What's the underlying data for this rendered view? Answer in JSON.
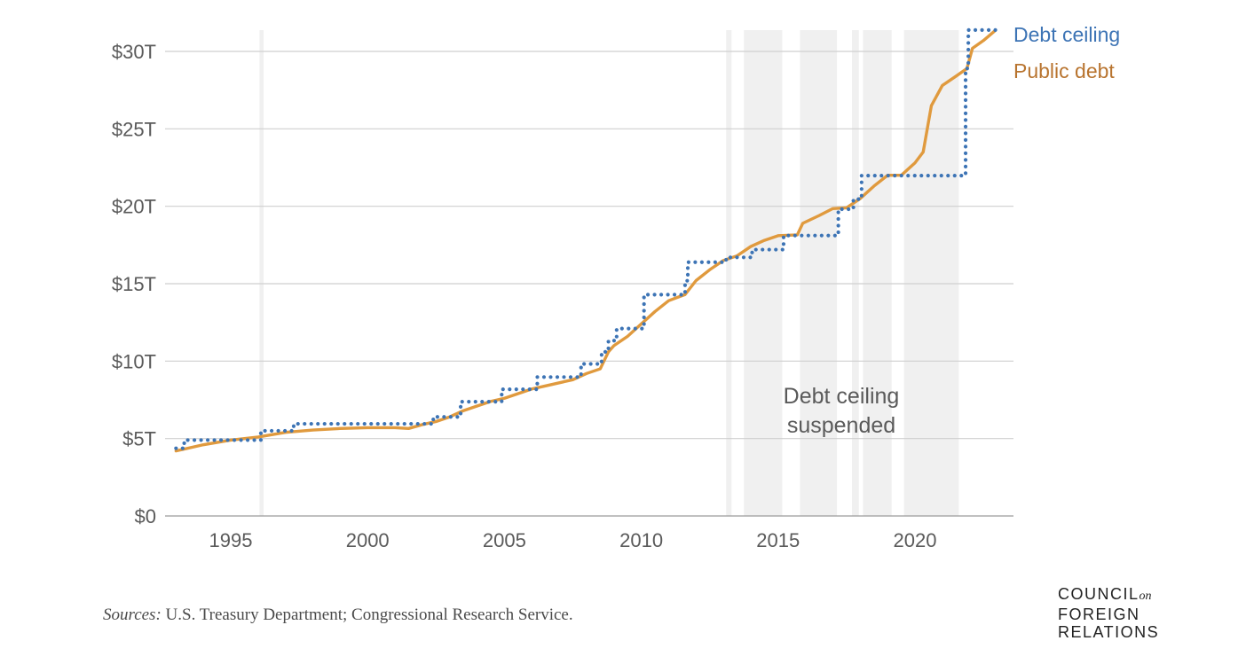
{
  "chart_data": {
    "type": "line",
    "title": "",
    "xlabel": "",
    "ylabel": "",
    "xlim": [
      1992.6,
      2023.6
    ],
    "ylim": [
      0,
      30
    ],
    "y_ticks": [
      {
        "value": 0,
        "label": "$0"
      },
      {
        "value": 5,
        "label": "$5T"
      },
      {
        "value": 10,
        "label": "$10T"
      },
      {
        "value": 15,
        "label": "$15T"
      },
      {
        "value": 20,
        "label": "$20T"
      },
      {
        "value": 25,
        "label": "$25T"
      },
      {
        "value": 30,
        "label": "$30T"
      }
    ],
    "x_ticks": [
      {
        "value": 1995,
        "label": "1995"
      },
      {
        "value": 2000,
        "label": "2000"
      },
      {
        "value": 2005,
        "label": "2005"
      },
      {
        "value": 2010,
        "label": "2010"
      },
      {
        "value": 2015,
        "label": "2015"
      },
      {
        "value": 2020,
        "label": "2020"
      }
    ],
    "suspended_periods": [
      [
        1996.05,
        1996.2
      ],
      [
        2013.1,
        2013.3
      ],
      [
        2013.75,
        2015.15
      ],
      [
        2015.8,
        2017.15
      ],
      [
        2017.7,
        2017.95
      ],
      [
        2018.1,
        2019.15
      ],
      [
        2019.6,
        2021.6
      ]
    ],
    "series": [
      {
        "name": "Debt ceiling",
        "color": "#3d74b5",
        "style": "dotted-step",
        "points": [
          [
            1993.0,
            4.37
          ],
          [
            1993.3,
            4.9
          ],
          [
            1996.1,
            5.5
          ],
          [
            1997.3,
            5.95
          ],
          [
            2002.4,
            6.4
          ],
          [
            2003.4,
            7.38
          ],
          [
            2004.9,
            8.18
          ],
          [
            2006.2,
            8.97
          ],
          [
            2007.8,
            9.82
          ],
          [
            2008.55,
            10.6
          ],
          [
            2008.8,
            11.32
          ],
          [
            2009.1,
            12.1
          ],
          [
            2010.1,
            14.29
          ],
          [
            2011.6,
            15.19
          ],
          [
            2011.7,
            16.39
          ],
          [
            2013.1,
            16.7
          ],
          [
            2014.05,
            17.2
          ],
          [
            2015.2,
            18.11
          ],
          [
            2017.2,
            19.81
          ],
          [
            2017.75,
            20.46
          ],
          [
            2018.05,
            21.98
          ],
          [
            2021.85,
            28.9
          ],
          [
            2021.95,
            31.38
          ],
          [
            2023.0,
            31.38
          ]
        ]
      },
      {
        "name": "Public debt",
        "color": "#e09a3e",
        "style": "solid",
        "points": [
          [
            1993.0,
            4.2
          ],
          [
            1994.0,
            4.6
          ],
          [
            1995.0,
            4.9
          ],
          [
            1996.0,
            5.1
          ],
          [
            1997.0,
            5.4
          ],
          [
            1998.0,
            5.55
          ],
          [
            1999.0,
            5.65
          ],
          [
            2000.0,
            5.7
          ],
          [
            2001.0,
            5.7
          ],
          [
            2001.5,
            5.65
          ],
          [
            2002.0,
            5.9
          ],
          [
            2002.5,
            6.1
          ],
          [
            2003.0,
            6.4
          ],
          [
            2003.5,
            6.8
          ],
          [
            2004.0,
            7.1
          ],
          [
            2004.5,
            7.4
          ],
          [
            2005.0,
            7.6
          ],
          [
            2005.5,
            7.9
          ],
          [
            2006.0,
            8.2
          ],
          [
            2006.5,
            8.4
          ],
          [
            2007.0,
            8.6
          ],
          [
            2007.5,
            8.8
          ],
          [
            2008.0,
            9.2
          ],
          [
            2008.5,
            9.5
          ],
          [
            2008.8,
            10.6
          ],
          [
            2009.0,
            11.0
          ],
          [
            2009.5,
            11.6
          ],
          [
            2010.0,
            12.4
          ],
          [
            2010.5,
            13.2
          ],
          [
            2011.0,
            13.9
          ],
          [
            2011.6,
            14.3
          ],
          [
            2012.0,
            15.2
          ],
          [
            2012.5,
            15.9
          ],
          [
            2013.0,
            16.5
          ],
          [
            2013.5,
            16.8
          ],
          [
            2014.0,
            17.4
          ],
          [
            2014.5,
            17.8
          ],
          [
            2015.0,
            18.1
          ],
          [
            2015.7,
            18.15
          ],
          [
            2015.9,
            18.9
          ],
          [
            2016.5,
            19.4
          ],
          [
            2017.0,
            19.85
          ],
          [
            2017.5,
            19.9
          ],
          [
            2018.0,
            20.5
          ],
          [
            2018.5,
            21.3
          ],
          [
            2019.0,
            22.0
          ],
          [
            2019.5,
            22.0
          ],
          [
            2020.0,
            22.8
          ],
          [
            2020.3,
            23.5
          ],
          [
            2020.6,
            26.5
          ],
          [
            2021.0,
            27.8
          ],
          [
            2021.5,
            28.4
          ],
          [
            2021.9,
            28.9
          ],
          [
            2022.1,
            30.2
          ],
          [
            2022.5,
            30.7
          ],
          [
            2022.9,
            31.3
          ]
        ]
      }
    ],
    "annotation": {
      "line1": "Debt ceiling",
      "line2": "suspended"
    }
  },
  "legend": {
    "ceiling_label": "Debt ceiling",
    "public_label": "Public debt",
    "ceiling_color": "#3d74b5",
    "public_color": "#b8742f"
  },
  "footer": {
    "sources_label": "Sources:",
    "sources_text": " U.S. Treasury Department; Congressional Research Service."
  },
  "logo": {
    "line1": "COUNCIL",
    "on": "on",
    "line2": "FOREIGN",
    "line3": "RELATIONS"
  }
}
